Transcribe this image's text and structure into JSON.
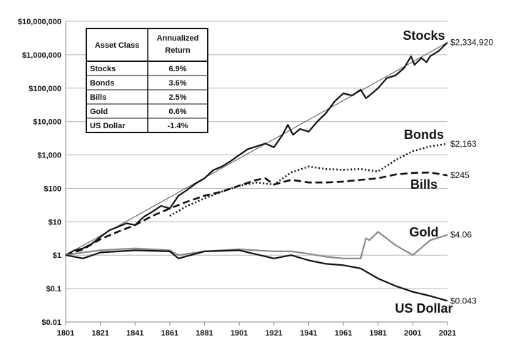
{
  "chart_data": {
    "type": "line",
    "y_scale": "log",
    "ylim": [
      0.01,
      10000000
    ],
    "xlim": [
      1801,
      2021
    ],
    "grid": "horizontal",
    "y_ticks": [
      {
        "value": 10000000,
        "label": "$10,000,000"
      },
      {
        "value": 1000000,
        "label": "$1,000,000"
      },
      {
        "value": 100000,
        "label": "$100,000"
      },
      {
        "value": 10000,
        "label": "$10,000"
      },
      {
        "value": 1000,
        "label": "$1,000"
      },
      {
        "value": 100,
        "label": "$100"
      },
      {
        "value": 10,
        "label": "$10"
      },
      {
        "value": 1,
        "label": "$1"
      },
      {
        "value": 0.1,
        "label": "$0.1"
      },
      {
        "value": 0.01,
        "label": "$0.01"
      }
    ],
    "x_ticks": [
      "1801",
      "1821",
      "1841",
      "1861",
      "1881",
      "1901",
      "1921",
      "1941",
      "1961",
      "1981",
      "2001",
      "2021"
    ],
    "table": {
      "headers": [
        "Asset Class",
        "Annualized Return"
      ],
      "rows": [
        [
          "Stocks",
          "6.9%"
        ],
        [
          "Bonds",
          "3.6%"
        ],
        [
          "Bills",
          "2.5%"
        ],
        [
          "Gold",
          "0.6%"
        ],
        [
          "US Dollar",
          "-1.4%"
        ]
      ]
    },
    "series": [
      {
        "name": "Stocks",
        "end_label": "$2,334,920",
        "color": "#111111",
        "style": "solid",
        "x": [
          1801,
          1806,
          1811,
          1816,
          1821,
          1826,
          1831,
          1836,
          1841,
          1846,
          1851,
          1856,
          1861,
          1866,
          1871,
          1876,
          1881,
          1886,
          1891,
          1896,
          1901,
          1906,
          1911,
          1916,
          1921,
          1926,
          1929,
          1932,
          1936,
          1941,
          1946,
          1951,
          1956,
          1961,
          1966,
          1971,
          1974,
          1976,
          1981,
          1986,
          1991,
          1996,
          2000,
          2002,
          2006,
          2009,
          2011,
          2016,
          2021
        ],
        "y": [
          1,
          1.4,
          1.6,
          2.2,
          3.5,
          5.5,
          7,
          9,
          8,
          14,
          20,
          30,
          25,
          60,
          90,
          140,
          200,
          350,
          450,
          650,
          1000,
          1500,
          1800,
          2200,
          1700,
          4000,
          8000,
          4000,
          6000,
          5000,
          10000,
          18000,
          40000,
          70000,
          60000,
          90000,
          50000,
          60000,
          100000,
          200000,
          240000,
          400000,
          900000,
          500000,
          800000,
          600000,
          900000,
          1300000,
          2334920
        ]
      },
      {
        "name": "Bonds",
        "end_label": "$2,163",
        "color": "#111111",
        "style": "dotted",
        "x": [
          1861,
          1871,
          1881,
          1891,
          1901,
          1911,
          1921,
          1931,
          1941,
          1951,
          1961,
          1971,
          1981,
          1991,
          2001,
          2011,
          2021
        ],
        "y": [
          15,
          30,
          50,
          80,
          120,
          150,
          130,
          300,
          450,
          380,
          360,
          380,
          320,
          700,
          1300,
          1800,
          2163
        ]
      },
      {
        "name": "Bills",
        "end_label": "$245",
        "color": "#111111",
        "style": "dashed",
        "x": [
          1801,
          1811,
          1821,
          1831,
          1841,
          1851,
          1861,
          1871,
          1881,
          1891,
          1901,
          1911,
          1916,
          1921,
          1931,
          1941,
          1951,
          1961,
          1971,
          1981,
          1991,
          2001,
          2011,
          2021
        ],
        "y": [
          1,
          1.5,
          3,
          5,
          8,
          15,
          25,
          40,
          60,
          80,
          120,
          180,
          200,
          130,
          180,
          150,
          150,
          160,
          180,
          200,
          260,
          290,
          300,
          245
        ]
      },
      {
        "name": "Gold",
        "end_label": "$4.06",
        "color": "#8a8a8a",
        "style": "solid",
        "x": [
          1801,
          1811,
          1821,
          1841,
          1861,
          1866,
          1881,
          1901,
          1921,
          1931,
          1941,
          1951,
          1961,
          1971,
          1974,
          1976,
          1981,
          1991,
          2001,
          2011,
          2021
        ],
        "y": [
          1,
          1.2,
          1.4,
          1.6,
          1.4,
          1,
          1.3,
          1.5,
          1.3,
          1.3,
          1.1,
          0.9,
          0.8,
          0.8,
          3.2,
          2.8,
          5,
          2,
          1,
          2.8,
          4.06
        ]
      },
      {
        "name": "US Dollar",
        "end_label": "$0.043",
        "color": "#111111",
        "style": "solid",
        "x": [
          1801,
          1811,
          1821,
          1841,
          1861,
          1866,
          1881,
          1901,
          1921,
          1931,
          1941,
          1951,
          1961,
          1971,
          1981,
          1991,
          2001,
          2011,
          2021
        ],
        "y": [
          1,
          0.8,
          1.2,
          1.4,
          1.3,
          0.8,
          1.3,
          1.4,
          0.8,
          1,
          0.7,
          0.55,
          0.5,
          0.4,
          0.2,
          0.12,
          0.08,
          0.06,
          0.043
        ]
      }
    ]
  }
}
